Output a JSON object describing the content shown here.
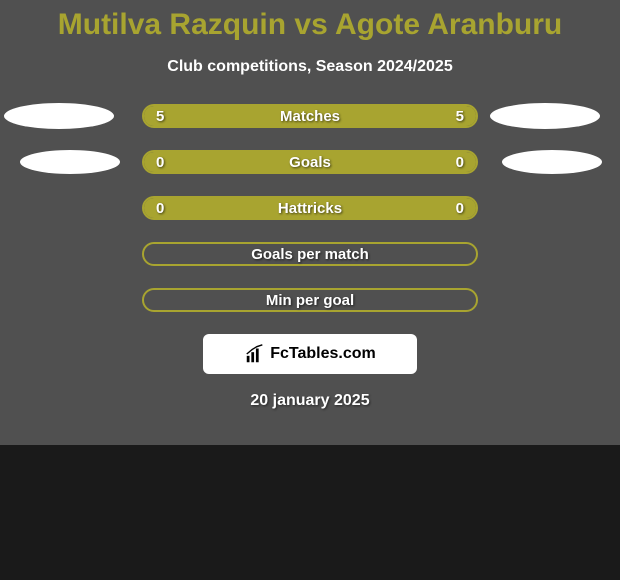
{
  "title": "Mutilva Razquin vs Agote Aranburu",
  "subtitle": "Club competitions, Season 2024/2025",
  "date": "20 january 2025",
  "logo_text": "FcTables.com",
  "colors": {
    "accent": "#a8a430",
    "background": "#505050",
    "ellipse": "#ffffff",
    "text": "#ffffff",
    "logo_bg": "#ffffff",
    "logo_text": "#000000"
  },
  "rows": [
    {
      "label": "Matches",
      "left": "5",
      "right": "5",
      "filled": true,
      "show_ellipses": true,
      "ellipse_class": "ell-a",
      "ell_left": "ell-left-1",
      "ell_right": "ell-right-1"
    },
    {
      "label": "Goals",
      "left": "0",
      "right": "0",
      "filled": true,
      "show_ellipses": true,
      "ellipse_class": "ell-b",
      "ell_left": "ell-left-2",
      "ell_right": "ell-right-2"
    },
    {
      "label": "Hattricks",
      "left": "0",
      "right": "0",
      "filled": true,
      "show_ellipses": false
    },
    {
      "label": "Goals per match",
      "left": "",
      "right": "",
      "filled": false,
      "show_ellipses": false
    },
    {
      "label": "Min per goal",
      "left": "",
      "right": "",
      "filled": false,
      "show_ellipses": false
    }
  ]
}
